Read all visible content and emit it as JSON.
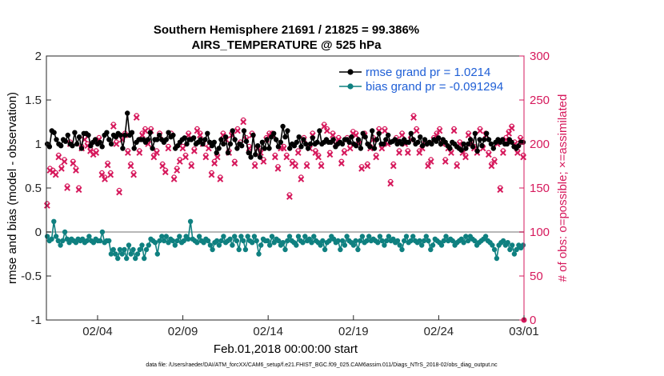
{
  "chart_data": {
    "type": "line",
    "title": "Southern Hemisphere 21691 / 21825 = 99.386%",
    "subtitle": "AIRS_TEMPERATURE @ 525 hPa",
    "xlabel": "Feb.01,2018 00:00:00 start",
    "ylabel_left": "rmse and bias (model - observation)",
    "ylabel_right": "# of obs: o=possible; ×=assimilated",
    "footnote": "data file: /Users/raeder/DAI/ATM_forcXX/CAM6_setup/f.e21.FHIST_BGC.f09_025.CAM6assim.011/Diags_NTrS_2018-02/obs_diag_output.nc",
    "x_ticks": [
      "02/04",
      "02/09",
      "02/14",
      "02/19",
      "02/24",
      "03/01"
    ],
    "x_tick_days": [
      3,
      8,
      13,
      18,
      23,
      28
    ],
    "xlim": [
      0,
      28
    ],
    "ylim_left": [
      -1,
      2
    ],
    "y_ticks_left": [
      "-1",
      "-0.5",
      "0",
      "0.5",
      "1",
      "1.5",
      "2"
    ],
    "ylim_right": [
      0,
      300
    ],
    "y_ticks_right": [
      "0",
      "50",
      "100",
      "150",
      "200",
      "250",
      "300"
    ],
    "legend_position": "top-right",
    "colors": {
      "rmse": "#000000",
      "bias": "#0f8080",
      "obs": "#d6195c",
      "zero_line": "#b8b8b8",
      "legend_text": "#1f5fd6"
    },
    "series": [
      {
        "name": "rmse grand pr = 1.0214",
        "axis": "left",
        "values": [
          1.0,
          0.97,
          1.15,
          1.13,
          1.05,
          1.0,
          0.98,
          1.05,
          1.03,
          1.1,
          1.0,
          0.98,
          1.13,
          1.0,
          1.08,
          0.95,
          1.12,
          1.12,
          1.1,
          0.98,
          1.02,
          1.05,
          1.0,
          1.02,
          0.97,
          1.1,
          1.13,
          1.05,
          1.0,
          1.1,
          1.08,
          1.12,
          1.1,
          0.95,
          1.1,
          1.35,
          1.1,
          1.13,
          0.95,
          1.02,
          1.05,
          1.05,
          1.05,
          1.02,
          1.05,
          1.13,
          0.95,
          1.05,
          1.05,
          1.1,
          1.05,
          1.02,
          1.05,
          1.13,
          1.08,
          1.1,
          0.95,
          0.98,
          1.02,
          1.05,
          1.07,
          1.0,
          1.05,
          1.05,
          1.07,
          1.0,
          1.02,
          1.05,
          1.0,
          1.05,
          1.12,
          1.02,
          0.98,
          1.02,
          0.9,
          0.95,
          1.05,
          1.0,
          1.08,
          0.9,
          1.0,
          1.15,
          1.05,
          0.95,
          1.0,
          0.98,
          1.15,
          1.03,
          0.9,
          0.85,
          1.1,
          0.88,
          0.98,
          0.85,
          1.02,
          0.95,
          1.05,
          0.95,
          1.08,
          1.12,
          1.05,
          0.97,
          1.02,
          1.2,
          1.08,
          1.15,
          0.95,
          1.0,
          0.98,
          1.02,
          1.08,
          0.97,
          1.05,
          1.0,
          0.95,
          1.0,
          1.07,
          1.0,
          1.02,
          1.15,
          1.0,
          1.02,
          1.05,
          1.02,
          1.02,
          1.05,
          0.97,
          1.0,
          1.02,
          1.0,
          1.05,
          1.05,
          1.02,
          1.08,
          1.0,
          0.98,
          1.05,
          0.95,
          1.12,
          1.08,
          1.0,
          0.97,
          1.15,
          0.95,
          1.05,
          1.12,
          1.0,
          1.0,
          1.05,
          1.1,
          1.02,
          1.03,
          1.05,
          1.0,
          1.03,
          1.0,
          1.05,
          1.02,
          1.02,
          1.12,
          1.05,
          1.0,
          1.02,
          1.08,
          0.98,
          1.05,
          1.0,
          1.02,
          1.0,
          1.05,
          1.03,
          1.07,
          1.0,
          1.05,
          1.02,
          0.98,
          0.95,
          1.02,
          1.0,
          0.97,
          0.95,
          0.93,
          1.0,
          0.95,
          1.0,
          1.05,
          0.97,
          1.12,
          0.92,
          1.05,
          0.98,
          1.05,
          1.12,
          1.05,
          1.0,
          0.95,
          1.02,
          1.05,
          1.02,
          1.05,
          1.0,
          1.0,
          1.05,
          1.02,
          0.97,
          0.95,
          0.98,
          1.02,
          1.02
        ]
      },
      {
        "name": "bias grand pr = -0.091294",
        "axis": "left",
        "values": [
          -0.05,
          -0.1,
          -0.08,
          0.12,
          -0.05,
          -0.1,
          -0.15,
          -0.1,
          0.0,
          -0.08,
          -0.12,
          -0.08,
          -0.1,
          -0.12,
          -0.08,
          -0.1,
          -0.08,
          -0.12,
          -0.1,
          -0.05,
          -0.1,
          -0.12,
          -0.08,
          -0.1,
          -0.1,
          0.0,
          -0.12,
          -0.1,
          -0.1,
          -0.25,
          -0.2,
          -0.25,
          -0.3,
          -0.2,
          -0.25,
          -0.2,
          -0.3,
          -0.15,
          -0.25,
          -0.2,
          -0.3,
          -0.25,
          -0.2,
          -0.15,
          -0.3,
          -0.2,
          -0.15,
          -0.08,
          -0.1,
          -0.12,
          -0.25,
          -0.1,
          -0.05,
          -0.1,
          -0.05,
          -0.12,
          -0.08,
          -0.1,
          -0.15,
          -0.1,
          -0.05,
          -0.12,
          -0.1,
          -0.05,
          -0.08,
          0.12,
          -0.08,
          -0.1,
          -0.12,
          -0.05,
          -0.1,
          -0.12,
          -0.08,
          -0.1,
          -0.15,
          -0.2,
          -0.12,
          -0.1,
          -0.15,
          -0.1,
          -0.05,
          -0.12,
          -0.1,
          -0.08,
          -0.15,
          -0.05,
          -0.1,
          -0.2,
          -0.05,
          -0.1,
          -0.2,
          -0.05,
          -0.1,
          -0.12,
          -0.05,
          -0.1,
          -0.25,
          -0.15,
          -0.08,
          -0.1,
          -0.1,
          -0.15,
          -0.05,
          -0.12,
          -0.08,
          -0.1,
          -0.15,
          -0.12,
          -0.2,
          -0.1,
          -0.05,
          -0.1,
          -0.12,
          -0.15,
          -0.05,
          -0.1,
          -0.12,
          -0.05,
          -0.1,
          -0.08,
          -0.12,
          -0.05,
          -0.1,
          -0.12,
          -0.15,
          -0.1,
          -0.2,
          -0.12,
          -0.1,
          -0.05,
          -0.08,
          -0.12,
          -0.1,
          -0.2,
          -0.1,
          -0.15,
          -0.05,
          -0.1,
          -0.12,
          -0.15,
          -0.1,
          -0.2,
          -0.1,
          -0.05,
          -0.12,
          -0.1,
          -0.05,
          -0.1,
          -0.08,
          -0.1,
          -0.12,
          -0.05,
          -0.1,
          -0.15,
          -0.1,
          -0.05,
          -0.1,
          -0.08,
          -0.12,
          -0.1,
          -0.15,
          -0.2,
          -0.1,
          -0.05,
          -0.12,
          -0.1,
          -0.05,
          -0.1,
          -0.12,
          -0.1,
          -0.15,
          -0.1,
          -0.05,
          -0.1,
          -0.2,
          -0.15,
          -0.08,
          -0.1,
          -0.12,
          -0.15,
          -0.1,
          -0.05,
          -0.1,
          -0.08,
          -0.1,
          -0.15,
          -0.12,
          -0.1,
          -0.08,
          -0.12,
          -0.05,
          -0.1,
          -0.05,
          -0.08,
          -0.1,
          -0.15,
          -0.12,
          -0.1,
          -0.08,
          -0.05,
          -0.1,
          -0.12,
          -0.15,
          -0.2,
          -0.3,
          -0.15,
          -0.12,
          -0.1,
          -0.15,
          -0.12,
          -0.2,
          -0.15,
          -0.25,
          -0.2,
          -0.15,
          -0.18,
          -0.15
        ]
      },
      {
        "name": "# of obs possible / assimilated",
        "axis": "right",
        "values": [
          130,
          170,
          168,
          165,
          185,
          172,
          180,
          150,
          200,
          178,
          170,
          148,
          195,
          205,
          198,
          192,
          188,
          190,
          205,
          165,
          160,
          176,
          165,
          220,
          200,
          145,
          205,
          210,
          190,
          175,
          165,
          230,
          190,
          210,
          215,
          200,
          215,
          185,
          190,
          210,
          175,
          168,
          195,
          210,
          160,
          170,
          180,
          195,
          185,
          210,
          175,
          192,
          215,
          210,
          200,
          185,
          195,
          165,
          178,
          185,
          160,
          210,
          205,
          190,
          210,
          178,
          215,
          200,
          225,
          205,
          195,
          210,
          175,
          195,
          190,
          180,
          205,
          210,
          210,
          185,
          172,
          195,
          195,
          185,
          140,
          178,
          175,
          190,
          160,
          205,
          175,
          195,
          210,
          190,
          185,
          175,
          220,
          215,
          188,
          210,
          200,
          205,
          178,
          190,
          205,
          195,
          212,
          210,
          200,
          172,
          210,
          175,
          195,
          205,
          185,
          215,
          195,
          215,
          200,
          155,
          175,
          205,
          190,
          210,
          200,
          190,
          205,
          230,
          215,
          190,
          195,
          200,
          175,
          180,
          205,
          210,
          215,
          200,
          180,
          195,
          190,
          215,
          175,
          200,
          190,
          185,
          210,
          200,
          195,
          190,
          215,
          195,
          210,
          188,
          175,
          180,
          200,
          148,
          190,
          205,
          212,
          218,
          200,
          190,
          205,
          185
        ]
      }
    ]
  }
}
